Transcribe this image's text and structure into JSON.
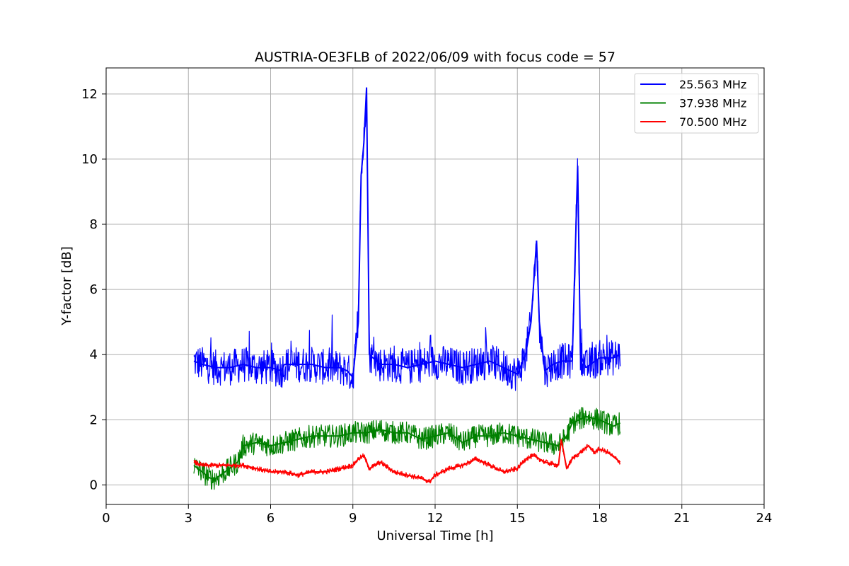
{
  "chart_data": {
    "type": "line",
    "title": "AUSTRIA-OE3FLB of 2022/06/09 with focus code = 57",
    "xlabel": "Universal Time [h]",
    "ylabel": "Y-factor [dB]",
    "xlim": [
      0,
      24
    ],
    "ylim": [
      -0.6,
      12.8
    ],
    "xticks": [
      0,
      3,
      6,
      9,
      12,
      15,
      18,
      21,
      24
    ],
    "yticks": [
      0,
      2,
      4,
      6,
      8,
      10,
      12
    ],
    "grid": true,
    "legend_position": "top-right",
    "series": [
      {
        "name": "25.563 MHz",
        "color": "#0000ff",
        "x": [
          3.2,
          3.5,
          4.0,
          4.5,
          5.0,
          5.5,
          6.0,
          6.4,
          6.5,
          7.0,
          7.5,
          8.0,
          8.5,
          8.8,
          9.0,
          9.2,
          9.3,
          9.4,
          9.5,
          9.6,
          10.0,
          10.5,
          11.0,
          11.5,
          12.0,
          12.5,
          13.0,
          13.5,
          14.0,
          14.5,
          15.0,
          15.3,
          15.5,
          15.7,
          15.8,
          16.0,
          16.3,
          16.6,
          17.0,
          17.2,
          17.3,
          17.5,
          18.0,
          18.5,
          18.75
        ],
        "y": [
          3.8,
          3.7,
          3.6,
          3.6,
          3.7,
          3.6,
          3.6,
          3.5,
          3.7,
          3.7,
          3.7,
          3.6,
          3.6,
          3.5,
          3.3,
          5.0,
          9.5,
          10.5,
          12.2,
          4.0,
          3.7,
          3.7,
          3.6,
          3.7,
          3.8,
          3.7,
          3.6,
          3.7,
          3.8,
          3.6,
          3.4,
          4.0,
          5.0,
          7.5,
          5.0,
          3.5,
          3.7,
          3.8,
          3.8,
          9.8,
          4.0,
          3.6,
          3.9,
          3.9,
          4.0
        ]
      },
      {
        "name": "37.938 MHz",
        "color": "#008000",
        "x": [
          3.2,
          3.5,
          3.8,
          4.0,
          4.5,
          4.8,
          5.0,
          5.5,
          6.0,
          6.5,
          7.0,
          7.5,
          8.0,
          8.5,
          9.0,
          9.5,
          10.0,
          10.5,
          11.0,
          11.5,
          12.0,
          12.5,
          13.0,
          13.5,
          14.0,
          14.5,
          15.0,
          15.5,
          16.0,
          16.5,
          16.8,
          17.0,
          17.5,
          18.0,
          18.5,
          18.75
        ],
        "y": [
          0.6,
          0.4,
          0.2,
          0.2,
          0.5,
          0.7,
          1.2,
          1.3,
          1.2,
          1.3,
          1.4,
          1.5,
          1.5,
          1.5,
          1.6,
          1.6,
          1.7,
          1.6,
          1.6,
          1.4,
          1.5,
          1.6,
          1.3,
          1.5,
          1.5,
          1.6,
          1.5,
          1.4,
          1.3,
          1.2,
          1.5,
          1.9,
          2.1,
          2.0,
          1.8,
          1.9
        ]
      },
      {
        "name": "70.500 MHz",
        "color": "#ff0000",
        "x": [
          3.2,
          3.5,
          4.0,
          4.5,
          5.0,
          5.5,
          6.0,
          6.5,
          7.0,
          7.5,
          8.0,
          8.5,
          9.0,
          9.2,
          9.4,
          9.6,
          10.0,
          10.5,
          11.0,
          11.5,
          11.8,
          12.0,
          12.5,
          13.0,
          13.5,
          14.0,
          14.5,
          15.0,
          15.3,
          15.6,
          16.0,
          16.5,
          16.6,
          16.8,
          17.0,
          17.3,
          17.6,
          17.8,
          18.0,
          18.3,
          18.75
        ],
        "y": [
          0.7,
          0.6,
          0.6,
          0.6,
          0.6,
          0.5,
          0.4,
          0.4,
          0.3,
          0.4,
          0.4,
          0.5,
          0.6,
          0.8,
          0.9,
          0.5,
          0.7,
          0.4,
          0.3,
          0.2,
          0.1,
          0.3,
          0.5,
          0.6,
          0.8,
          0.6,
          0.4,
          0.5,
          0.8,
          0.9,
          0.7,
          0.6,
          1.4,
          0.5,
          0.8,
          1.0,
          1.2,
          1.0,
          1.1,
          1.0,
          0.7
        ]
      }
    ]
  }
}
